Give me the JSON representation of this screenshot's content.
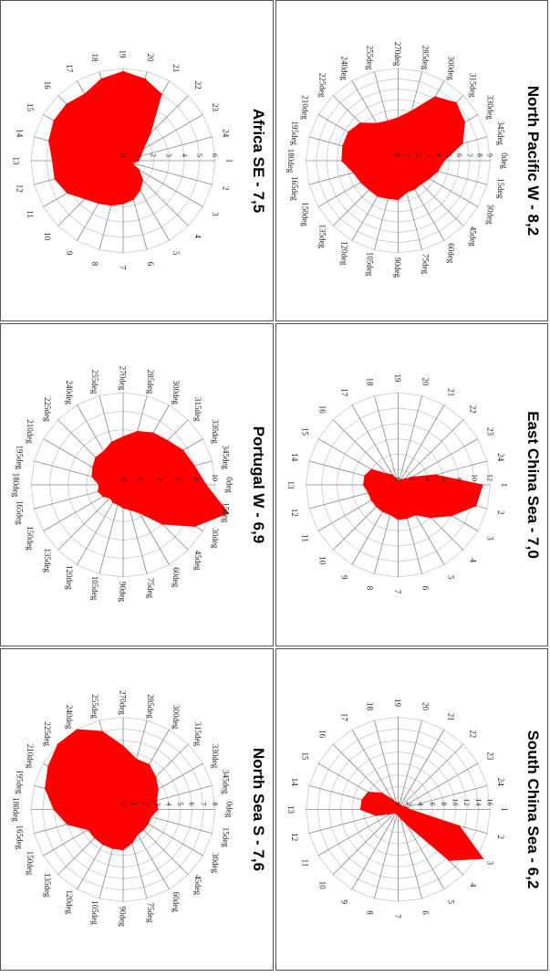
{
  "colors": {
    "fill": "#ff0000",
    "grid": "#c8c8c8",
    "axis": "#888888",
    "border": "#555555"
  },
  "chart_data": [
    {
      "type": "radar",
      "title": "North Pacific W - 8,2",
      "tick_labels": [
        "0deg",
        "15deg",
        "30deg",
        "45deg",
        "60deg",
        "75deg",
        "90deg",
        "105deg",
        "120deg",
        "135deg",
        "150deg",
        "165deg",
        "180deg",
        "195deg",
        "210deg",
        "225deg",
        "240deg",
        "255deg",
        "270deg",
        "285deg",
        "300deg",
        "315deg",
        "330deg",
        "345deg"
      ],
      "radial_labels": [
        "0",
        "1",
        "2",
        "3",
        "4",
        "5",
        "6",
        "7",
        "8",
        "9"
      ],
      "rmax": 9,
      "values": [
        4.5,
        4.0,
        3.5,
        3.2,
        3.2,
        3.2,
        3.8,
        3.8,
        4.0,
        4.0,
        4.2,
        4.5,
        5.5,
        5.6,
        5.6,
        5.2,
        4.2,
        4.0,
        4.2,
        5.0,
        7.2,
        8.0,
        7.5,
        6.5
      ]
    },
    {
      "type": "radar",
      "title": "Africa SE - 7,5",
      "tick_labels": [
        "1",
        "2",
        "3",
        "4",
        "5",
        "6",
        "7",
        "8",
        "9",
        "10",
        "11",
        "12",
        "13",
        "14",
        "15",
        "16",
        "17",
        "18",
        "19",
        "20",
        "21",
        "22",
        "23",
        "24"
      ],
      "radial_labels": [
        "0",
        "1",
        "2",
        "3",
        "4",
        "5",
        "6"
      ],
      "rmax": 6,
      "values": [
        1.0,
        0.6,
        1.2,
        1.8,
        2.2,
        2.6,
        2.8,
        3.0,
        3.2,
        3.5,
        4.2,
        4.6,
        4.6,
        5.0,
        5.2,
        5.2,
        5.0,
        5.5,
        5.8,
        5.5,
        5.0,
        2.5,
        1.5,
        1.2
      ]
    },
    {
      "type": "radar",
      "title": "East China Sea - 7,0",
      "tick_labels": [
        "1",
        "2",
        "3",
        "4",
        "5",
        "6",
        "7",
        "8",
        "9",
        "10",
        "11",
        "12",
        "13",
        "14",
        "15",
        "16",
        "17",
        "18",
        "19",
        "20",
        "21",
        "22",
        "23",
        "24"
      ],
      "radial_labels": [
        "0",
        "2",
        "4",
        "6",
        "8",
        "10",
        "12"
      ],
      "rmax": 12,
      "values": [
        11.0,
        10.5,
        8.0,
        6.0,
        4.5,
        4.5,
        4.5,
        4.0,
        4.0,
        4.0,
        4.0,
        4.0,
        4.5,
        4.5,
        4.0,
        2.0,
        1.5,
        0.8,
        0.6,
        0.6,
        0.8,
        1.0,
        2.0,
        5.0
      ]
    },
    {
      "type": "radar",
      "title": "Portugal W - 6,9",
      "tick_labels": [
        "0deg",
        "15deg",
        "30deg",
        "45deg",
        "60deg",
        "75deg",
        "90deg",
        "105deg",
        "120deg",
        "135deg",
        "150deg",
        "165deg",
        "180deg",
        "195deg",
        "210deg",
        "225deg",
        "240deg",
        "255deg",
        "270deg",
        "285deg",
        "300deg",
        "315deg",
        "330deg",
        "345deg"
      ],
      "radial_labels": [
        "0",
        "2",
        "4",
        "6",
        "8",
        "10"
      ],
      "rmax": 10,
      "values": [
        9.0,
        11.8,
        9.0,
        6.0,
        3.5,
        2.8,
        2.5,
        2.2,
        2.2,
        2.0,
        2.5,
        2.8,
        2.6,
        3.5,
        3.8,
        4.2,
        4.2,
        4.8,
        5.2,
        6.0,
        6.5,
        6.8,
        7.5,
        8.0
      ]
    },
    {
      "type": "radar",
      "title": "South China Sea - 6,2",
      "tick_labels": [
        "1",
        "2",
        "3",
        "4",
        "5",
        "6",
        "7",
        "8",
        "9",
        "10",
        "11",
        "12",
        "13",
        "14",
        "15",
        "16",
        "17",
        "18",
        "19",
        "20",
        "21",
        "22",
        "23",
        "24"
      ],
      "radial_labels": [
        "0",
        "2",
        "4",
        "6",
        "8",
        "10",
        "12",
        "14",
        "16"
      ],
      "rmax": 16,
      "values": [
        2.0,
        11.0,
        17.0,
        12.5,
        3.0,
        1.5,
        1.0,
        0.8,
        0.8,
        0.8,
        1.5,
        4.0,
        6.5,
        6.5,
        6.0,
        4.0,
        2.0,
        1.2,
        1.0,
        0.8,
        0.8,
        0.8,
        1.0,
        1.5
      ]
    },
    {
      "type": "radar",
      "title": "North Sea S - 7,6",
      "tick_labels": [
        "0deg",
        "15deg",
        "30deg",
        "45deg",
        "60deg",
        "75deg",
        "90deg",
        "105deg",
        "120deg",
        "135deg",
        "150deg",
        "165deg",
        "180deg",
        "195deg",
        "210deg",
        "225deg",
        "240deg",
        "255deg",
        "270deg",
        "285deg",
        "300deg",
        "315deg",
        "330deg",
        "345deg"
      ],
      "radial_labels": [
        "0",
        "1",
        "2",
        "3",
        "4",
        "5",
        "6",
        "7",
        "8"
      ],
      "rmax": 8,
      "values": [
        3.0,
        2.5,
        2.5,
        2.5,
        2.5,
        3.0,
        3.5,
        3.5,
        3.5,
        3.5,
        3.5,
        5.0,
        6.0,
        7.0,
        7.5,
        8.0,
        8.0,
        7.0,
        5.5,
        4.5,
        4.5,
        4.0,
        3.5,
        3.0
      ]
    }
  ]
}
